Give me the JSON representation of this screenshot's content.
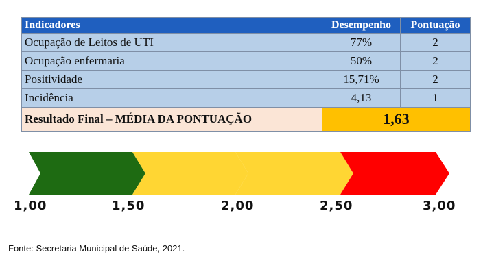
{
  "table": {
    "headers": [
      "Indicadores",
      "Desempenho",
      "Pontuação"
    ],
    "rows": [
      {
        "indicador": "Ocupação de Leitos de UTI",
        "desempenho": "77%",
        "pontuacao": "2"
      },
      {
        "indicador": "Ocupação enfermaria",
        "desempenho": "50%",
        "pontuacao": "2"
      },
      {
        "indicador": "Positividade",
        "desempenho": "15,71%",
        "pontuacao": "2"
      },
      {
        "indicador": "Incidência",
        "desempenho": "4,13",
        "pontuacao": "1"
      }
    ],
    "result_label": "Resultado Final – MÉDIA DA PONTUAÇÃO",
    "result_value": "1,63"
  },
  "scale": {
    "segments": [
      {
        "from": 1.0,
        "to": 1.5,
        "color": "#1e6b12"
      },
      {
        "from": 1.5,
        "to": 2.0,
        "color": "#ffd633"
      },
      {
        "from": 2.0,
        "to": 2.5,
        "color": "#ffd633"
      },
      {
        "from": 2.5,
        "to": 3.0,
        "color": "#ff0000"
      }
    ],
    "labels": [
      "1,00",
      "1,50",
      "2,00",
      "2,50",
      "3,00"
    ]
  },
  "source": "Fonte: Secretaria Municipal de Saúde, 2021."
}
